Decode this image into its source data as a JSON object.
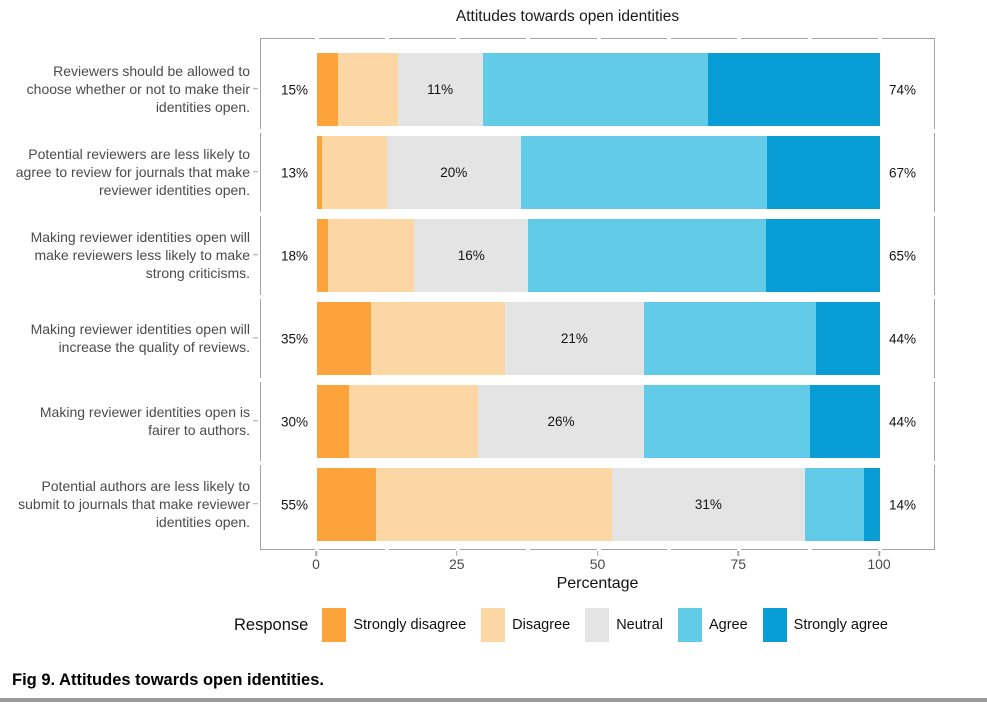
{
  "figure": {
    "title": "Attitudes towards open identities",
    "caption": "Fig 9. Attitudes towards open identities."
  },
  "chart_data": {
    "type": "bar",
    "orientation": "horizontal",
    "stacked": true,
    "title": "Attitudes towards open identities",
    "xlabel": "Percentage",
    "xlim": [
      0,
      100
    ],
    "x_ticks": [
      0,
      25,
      50,
      75,
      100
    ],
    "grid": false,
    "legend": {
      "title": "Response",
      "position": "bottom",
      "entries": [
        "Strongly disagree",
        "Disagree",
        "Neutral",
        "Agree",
        "Strongly agree"
      ]
    },
    "colors": {
      "Strongly disagree": "#FCA33C",
      "Disagree": "#FDD7A3",
      "Neutral": "#E4E4E4",
      "Agree": "#62CBE8",
      "Strongly agree": "#089DD5"
    },
    "categories": [
      "Reviewers should be allowed to choose whether or not to make their identities open.",
      "Potential reviewers are less likely to agree to review for journals that make reviewer identities open.",
      "Making reviewer identities open will make reviewers less likely to make strong criticisms.",
      "Making reviewer identities open will increase the quality of reviews.",
      "Making reviewer identities open is fairer to authors.",
      "Potential authors are less likely to submit to journals that make reviewer identities open."
    ],
    "series": [
      {
        "name": "Strongly disagree",
        "values": [
          4,
          1,
          2,
          10,
          6,
          11
        ]
      },
      {
        "name": "Disagree",
        "values": [
          11,
          12,
          16,
          25,
          24,
          44
        ]
      },
      {
        "name": "Neutral",
        "values": [
          11,
          20,
          16,
          21,
          26,
          31
        ]
      },
      {
        "name": "Agree",
        "values": [
          42,
          46,
          44,
          32,
          31,
          11
        ]
      },
      {
        "name": "Strongly agree",
        "values": [
          32,
          21,
          21,
          12,
          13,
          3
        ]
      }
    ],
    "annotations": {
      "left_totals": [
        "15%",
        "13%",
        "18%",
        "35%",
        "30%",
        "55%"
      ],
      "neutral_labels": [
        "11%",
        "20%",
        "16%",
        "21%",
        "26%",
        "31%"
      ],
      "right_totals": [
        "74%",
        "67%",
        "65%",
        "44%",
        "44%",
        "14%"
      ]
    }
  }
}
